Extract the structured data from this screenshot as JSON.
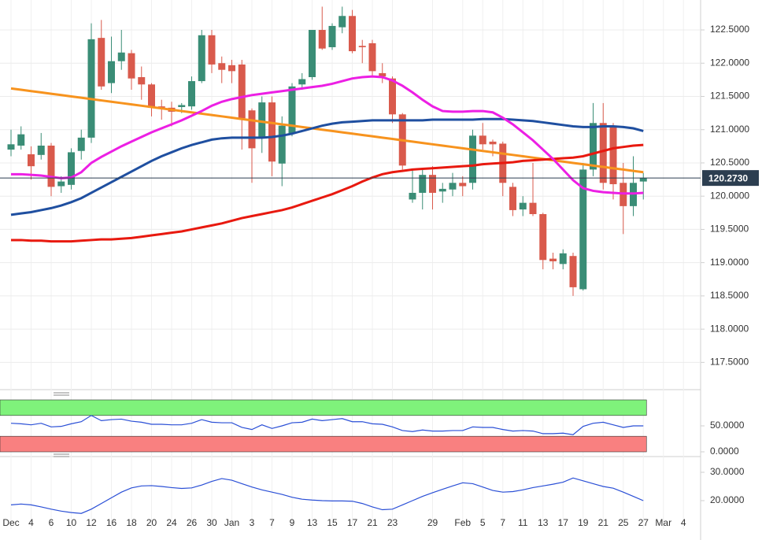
{
  "chart_data": [
    {
      "type": "candlestick",
      "categories": [
        "Dec",
        null,
        "4",
        null,
        "6",
        null,
        "10",
        null,
        "12",
        null,
        "16",
        null,
        "18",
        null,
        "20",
        null,
        "24",
        null,
        "26",
        null,
        "30",
        null,
        "Jan",
        null,
        "3",
        null,
        "7",
        null,
        "9",
        null,
        "13",
        null,
        "15",
        null,
        "17",
        null,
        "21",
        null,
        "23",
        null,
        null,
        null,
        "29",
        null,
        null,
        "Feb",
        null,
        "5",
        null,
        "7",
        null,
        "11",
        null,
        "13",
        null,
        "17",
        null,
        "19",
        null,
        "21",
        null,
        "25",
        null,
        "27",
        null,
        "Mar",
        null,
        "4"
      ],
      "open": [
        120.7,
        120.76,
        120.63,
        120.62,
        120.76,
        120.15,
        120.17,
        120.68,
        120.88,
        122.38,
        121.7,
        122.03,
        122.15,
        121.79,
        121.68,
        121.35,
        121.33,
        121.34,
        121.35,
        121.73,
        122.42,
        122.0,
        121.97,
        121.98,
        121.29,
        120.88,
        121.41,
        120.49,
        120.94,
        121.68,
        121.79,
        122.5,
        122.24,
        122.54,
        122.71,
        122.26,
        122.3,
        121.85,
        121.77,
        121.23,
        119.95,
        120.05,
        120.32,
        120.07,
        120.1,
        120.2,
        120.2,
        120.91,
        120.82,
        120.79,
        120.14,
        119.8,
        119.9,
        119.73,
        119.06,
        118.98,
        119.1,
        118.6,
        120.4,
        121.1,
        121.05,
        120.2,
        119.85,
        120.22,
        null,
        null,
        null,
        null
      ],
      "high": [
        121.0,
        121.05,
        120.75,
        120.95,
        120.8,
        120.3,
        120.72,
        121.0,
        122.6,
        122.65,
        122.4,
        122.5,
        122.2,
        121.95,
        121.7,
        121.45,
        121.42,
        121.4,
        121.8,
        122.5,
        122.5,
        122.1,
        122.05,
        122.05,
        121.32,
        121.5,
        121.5,
        121.2,
        121.7,
        121.85,
        122.5,
        122.85,
        122.6,
        122.85,
        122.8,
        122.35,
        122.35,
        122.0,
        121.8,
        121.25,
        120.4,
        120.4,
        120.45,
        120.2,
        120.35,
        120.3,
        121.0,
        121.1,
        120.85,
        120.82,
        120.2,
        120.0,
        120.5,
        119.75,
        119.15,
        119.2,
        119.15,
        120.5,
        121.4,
        121.4,
        121.1,
        120.5,
        120.6,
        120.35,
        null,
        null,
        null,
        null
      ],
      "low": [
        120.6,
        120.7,
        120.25,
        120.55,
        120.0,
        120.05,
        120.1,
        120.55,
        120.8,
        121.6,
        121.55,
        121.9,
        121.6,
        121.45,
        121.2,
        121.15,
        121.05,
        121.25,
        121.3,
        121.7,
        121.85,
        121.7,
        121.7,
        120.7,
        120.2,
        120.65,
        120.3,
        120.15,
        120.9,
        121.6,
        121.75,
        122.2,
        122.2,
        122.45,
        122.15,
        122.0,
        121.8,
        121.7,
        121.1,
        120.4,
        119.9,
        119.8,
        119.8,
        119.9,
        120.0,
        120.0,
        120.1,
        120.7,
        120.6,
        120.0,
        119.7,
        119.7,
        119.7,
        118.9,
        118.9,
        118.9,
        118.5,
        118.58,
        120.3,
        120.1,
        119.95,
        119.43,
        119.7,
        119.95,
        null,
        null,
        null,
        null
      ],
      "close": [
        120.78,
        120.93,
        120.45,
        120.76,
        120.14,
        120.22,
        120.66,
        120.88,
        122.36,
        121.65,
        122.03,
        122.16,
        121.77,
        121.68,
        121.33,
        121.33,
        121.27,
        121.37,
        121.73,
        122.42,
        121.98,
        121.9,
        121.88,
        121.17,
        120.72,
        121.41,
        120.52,
        121.06,
        121.65,
        121.76,
        122.5,
        122.22,
        122.56,
        122.71,
        122.18,
        122.24,
        121.88,
        121.8,
        121.23,
        120.46,
        120.05,
        120.32,
        120.05,
        120.11,
        120.2,
        120.15,
        120.91,
        120.78,
        120.78,
        120.2,
        119.79,
        119.9,
        119.73,
        119.04,
        119.02,
        119.14,
        118.63,
        120.4,
        121.1,
        120.2,
        120.18,
        119.85,
        120.2,
        120.27,
        null,
        null,
        null,
        null
      ],
      "up_color": "#3a8d76",
      "down_color": "#d95a4c",
      "series": [
        {
          "color": "#f7931e",
          "values": [
            121.62,
            121.6,
            121.58,
            121.56,
            121.54,
            121.52,
            121.5,
            121.48,
            121.46,
            121.44,
            121.42,
            121.4,
            121.38,
            121.36,
            121.34,
            121.32,
            121.3,
            121.28,
            121.26,
            121.24,
            121.22,
            121.2,
            121.18,
            121.16,
            121.14,
            121.12,
            121.1,
            121.08,
            121.06,
            121.04,
            121.02,
            121.0,
            120.98,
            120.96,
            120.94,
            120.92,
            120.9,
            120.88,
            120.86,
            120.84,
            120.82,
            120.8,
            120.78,
            120.76,
            120.74,
            120.72,
            120.7,
            120.68,
            120.66,
            120.64,
            120.62,
            120.6,
            120.58,
            120.56,
            120.54,
            120.52,
            120.5,
            120.48,
            120.46,
            120.44,
            120.42,
            120.4,
            120.38,
            120.36,
            null,
            null,
            null,
            null
          ]
        },
        {
          "color": "#e8190f",
          "values": [
            119.34,
            119.34,
            119.33,
            119.33,
            119.32,
            119.32,
            119.32,
            119.33,
            119.34,
            119.35,
            119.35,
            119.36,
            119.37,
            119.39,
            119.41,
            119.43,
            119.45,
            119.47,
            119.5,
            119.53,
            119.56,
            119.59,
            119.63,
            119.67,
            119.7,
            119.73,
            119.76,
            119.79,
            119.83,
            119.88,
            119.93,
            119.98,
            120.03,
            120.09,
            120.15,
            120.22,
            120.28,
            120.33,
            120.36,
            120.38,
            120.4,
            120.41,
            120.42,
            120.43,
            120.44,
            120.45,
            120.46,
            120.48,
            120.49,
            120.5,
            120.51,
            120.53,
            120.54,
            120.55,
            120.56,
            120.57,
            120.58,
            120.6,
            120.64,
            120.68,
            120.72,
            120.74,
            120.76,
            120.77,
            null,
            null,
            null,
            null
          ]
        },
        {
          "color": "#1f4fa0",
          "values": [
            119.72,
            119.74,
            119.76,
            119.79,
            119.82,
            119.86,
            119.91,
            119.97,
            120.05,
            120.13,
            120.21,
            120.29,
            120.37,
            120.45,
            120.53,
            120.6,
            120.66,
            120.72,
            120.77,
            120.81,
            120.85,
            120.87,
            120.88,
            120.88,
            120.88,
            120.88,
            120.89,
            120.91,
            120.94,
            120.98,
            121.02,
            121.06,
            121.09,
            121.11,
            121.12,
            121.13,
            121.14,
            121.14,
            121.14,
            121.14,
            121.14,
            121.14,
            121.15,
            121.15,
            121.15,
            121.15,
            121.15,
            121.16,
            121.16,
            121.16,
            121.15,
            121.14,
            121.13,
            121.11,
            121.09,
            121.07,
            121.05,
            121.04,
            121.04,
            121.05,
            121.05,
            121.04,
            121.02,
            120.98,
            null,
            null,
            null,
            null
          ]
        },
        {
          "color": "#ec1fe4",
          "values": [
            120.33,
            120.33,
            120.32,
            120.31,
            120.29,
            120.27,
            120.28,
            120.36,
            120.5,
            120.59,
            120.67,
            120.75,
            120.82,
            120.89,
            120.96,
            121.02,
            121.08,
            121.14,
            121.21,
            121.28,
            121.36,
            121.42,
            121.46,
            121.49,
            121.52,
            121.54,
            121.56,
            121.58,
            121.6,
            121.62,
            121.64,
            121.66,
            121.69,
            121.73,
            121.77,
            121.79,
            121.8,
            121.79,
            121.74,
            121.66,
            121.56,
            121.45,
            121.35,
            121.28,
            121.27,
            121.27,
            121.28,
            121.28,
            121.26,
            121.18,
            121.08,
            120.96,
            120.84,
            120.7,
            120.56,
            120.4,
            120.24,
            120.12,
            120.08,
            120.06,
            120.05,
            120.04,
            120.04,
            120.05,
            null,
            null,
            null,
            null
          ]
        }
      ],
      "last_price": {
        "value": 120.273,
        "label": "120.2730"
      },
      "last_price_color": "#2c3e50",
      "ylim": [
        117.09,
        122.95
      ],
      "yticks": [
        {
          "value": 122.5,
          "label": "122.5000"
        },
        {
          "value": 122,
          "label": "122.0000"
        },
        {
          "value": 121.5,
          "label": "121.5000"
        },
        {
          "value": 121,
          "label": "121.0000"
        },
        {
          "value": 120.5,
          "label": "120.5000"
        },
        {
          "value": 120,
          "label": "120.0000"
        },
        {
          "value": 119.5,
          "label": "119.5000"
        },
        {
          "value": 119,
          "label": "119.0000"
        },
        {
          "value": 118.5,
          "label": "118.5000"
        },
        {
          "value": 118,
          "label": "118.0000"
        },
        {
          "value": 117.5,
          "label": "117.5000"
        }
      ],
      "grid": true
    },
    {
      "type": "line",
      "bands": [
        {
          "from": 70,
          "to": 100,
          "color": "#7ff27b"
        },
        {
          "from": 0,
          "to": 30,
          "color": "#f98080"
        }
      ],
      "series": [
        {
          "color": "#2a4fd6",
          "values": [
            55,
            54,
            52,
            55,
            48,
            49,
            54,
            58,
            70,
            60,
            62,
            63,
            59,
            57,
            53,
            53,
            52,
            52,
            55,
            62,
            57,
            56,
            56,
            47,
            43,
            52,
            45,
            50,
            56,
            57,
            63,
            60,
            62,
            64,
            58,
            58,
            54,
            53,
            48,
            41,
            39,
            42,
            40,
            40,
            41,
            41,
            48,
            47,
            47,
            43,
            40,
            41,
            40,
            35,
            35,
            36,
            33,
            49,
            55,
            57,
            52,
            47,
            50,
            50,
            null,
            null,
            null,
            null
          ]
        }
      ],
      "ylim": [
        0,
        100
      ],
      "yticks": [
        {
          "value": 50,
          "label": "50.0000"
        },
        {
          "value": 0,
          "label": "0.0000"
        }
      ]
    },
    {
      "type": "line",
      "series": [
        {
          "color": "#2a4fd6",
          "values": [
            18.5,
            18.8,
            18.5,
            17.8,
            17.0,
            16.3,
            15.8,
            15.5,
            17.0,
            19.0,
            21.0,
            23.0,
            24.5,
            25.2,
            25.3,
            25.0,
            24.6,
            24.3,
            24.5,
            25.5,
            26.8,
            27.8,
            27.2,
            26.0,
            24.8,
            23.8,
            23.0,
            22.2,
            21.2,
            20.5,
            20.2,
            20.0,
            19.9,
            19.9,
            19.8,
            19.0,
            17.8,
            16.8,
            17.0,
            18.5,
            20.0,
            21.5,
            22.8,
            24.0,
            25.2,
            26.3,
            26.0,
            24.8,
            23.6,
            23.0,
            23.2,
            23.8,
            24.6,
            25.2,
            25.8,
            26.5,
            28.0,
            27.0,
            26.0,
            25.0,
            24.4,
            23.0,
            21.5,
            20.0,
            null,
            null,
            null,
            null
          ]
        }
      ],
      "ylim": [
        10,
        34.17
      ],
      "yticks": [
        {
          "value": 30,
          "label": "30.0000"
        },
        {
          "value": 20,
          "label": "20.0000"
        }
      ]
    }
  ]
}
